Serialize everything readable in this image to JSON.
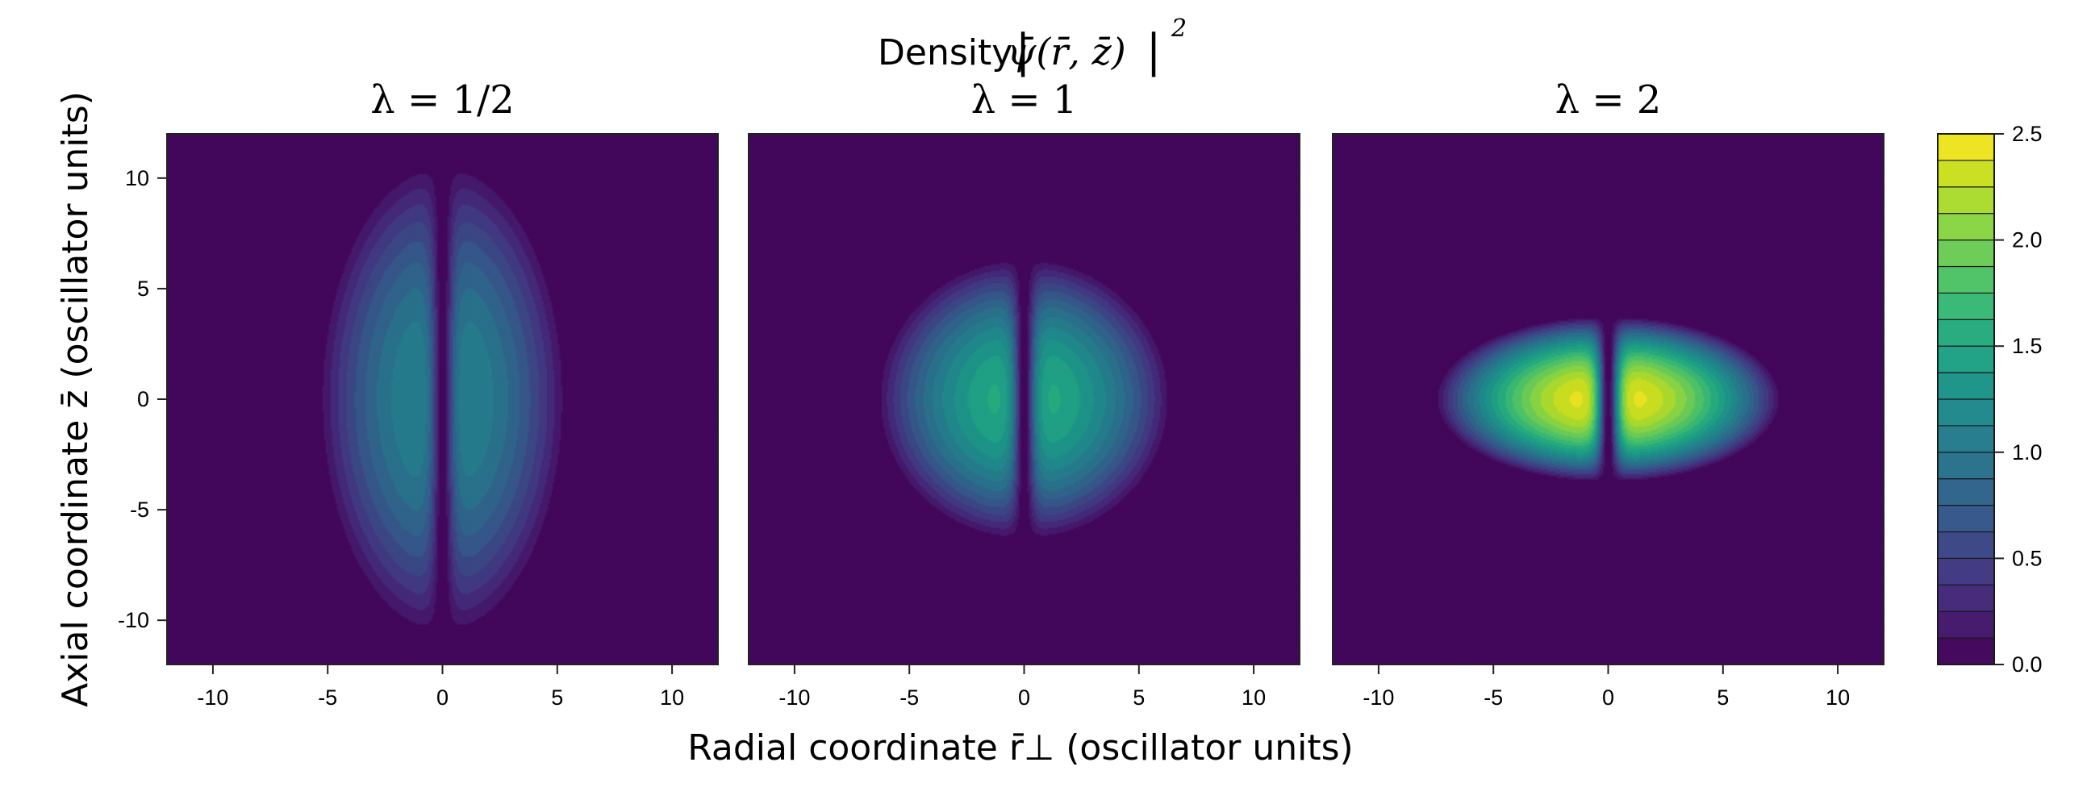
{
  "chart_data": {
    "type": "heatmap",
    "title": "Density |ψ̄(r̄, z̄)|²",
    "xlabel": "Radial coordinate r̄⊥ (oscillator units)",
    "ylabel": "Axial coordinate z̄ (oscillator units)",
    "xlim": [
      -12,
      12
    ],
    "ylim": [
      -12,
      12
    ],
    "x_ticks": [
      -10,
      -5,
      0,
      5,
      10
    ],
    "y_ticks": [
      -10,
      -5,
      0,
      5,
      10
    ],
    "x_tick_labels": [
      "-10",
      "-5",
      "0",
      "5",
      "10"
    ],
    "y_tick_labels": [
      "-10",
      "-5",
      "0",
      "5",
      "10"
    ],
    "grid": false,
    "legend": "colorbar-right",
    "colormap": "viridis",
    "panels": [
      {
        "title": "λ = 1/2",
        "lambda": 0.5,
        "radial_extent": 5.5,
        "axial_extent": 11,
        "peak_density": 1.2
      },
      {
        "title": "λ = 1",
        "lambda": 1,
        "radial_extent": 6.5,
        "axial_extent": 6.5,
        "peak_density": 1.6
      },
      {
        "title": "λ = 2",
        "lambda": 2,
        "radial_extent": 7.6,
        "axial_extent": 3.8,
        "peak_density": 2.5
      }
    ],
    "colorbar": {
      "min": 0,
      "max": 2.5,
      "levels": 20,
      "ticks": [
        0,
        0.5,
        1,
        1.5,
        2,
        2.5
      ],
      "tick_labels": [
        "0.0",
        "0.5",
        "1.0",
        "1.5",
        "2.0",
        "2.5"
      ],
      "colors": [
        "#440154",
        "#482173",
        "#433e85",
        "#38588c",
        "#2d708e",
        "#25858e",
        "#1e9b8a",
        "#2ab07f",
        "#52c569",
        "#86d549",
        "#c2df23",
        "#fde725"
      ]
    }
  }
}
